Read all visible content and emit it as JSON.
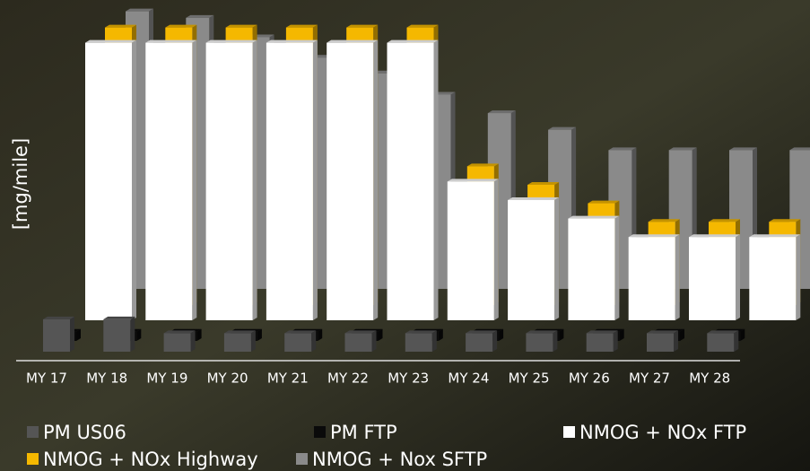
{
  "chart_data": {
    "type": "bar3d",
    "y_label": "[mg/mile]",
    "categories": [
      "MY 17",
      "MY 18",
      "MY 19",
      "MY 20",
      "MY 21",
      "MY 22",
      "MY 23",
      "MY 24",
      "MY 25",
      "MY 26",
      "MY 27",
      "MY 28"
    ],
    "ylim": [
      0,
      32
    ],
    "series": [
      {
        "name": "PM US06",
        "color": "#555555",
        "values": [
          3.5,
          3.5,
          2,
          2,
          2,
          2,
          2,
          2,
          2,
          2,
          2,
          2
        ]
      },
      {
        "name": "PM FTP",
        "color": "#0a0a0a",
        "values": [
          1,
          1,
          1,
          1,
          1,
          1,
          1,
          1,
          1,
          1,
          1,
          1
        ]
      },
      {
        "name": "NMOG + NOx FTP",
        "color": "#ffffff",
        "values": [
          30,
          30,
          30,
          30,
          30,
          30,
          15,
          13,
          11,
          9,
          9,
          9
        ]
      },
      {
        "name": "NMOG + NOx Highway",
        "color": "#f5b800",
        "values": [
          30,
          30,
          30,
          30,
          30,
          30,
          15,
          13,
          11,
          9,
          9,
          9
        ]
      },
      {
        "name": "NMOG + Nox SFTP",
        "color": "#8a8a8a",
        "values": [
          30,
          29.3,
          27.2,
          25,
          23.3,
          21,
          19,
          17.2,
          15,
          15,
          15,
          15
        ]
      }
    ]
  }
}
